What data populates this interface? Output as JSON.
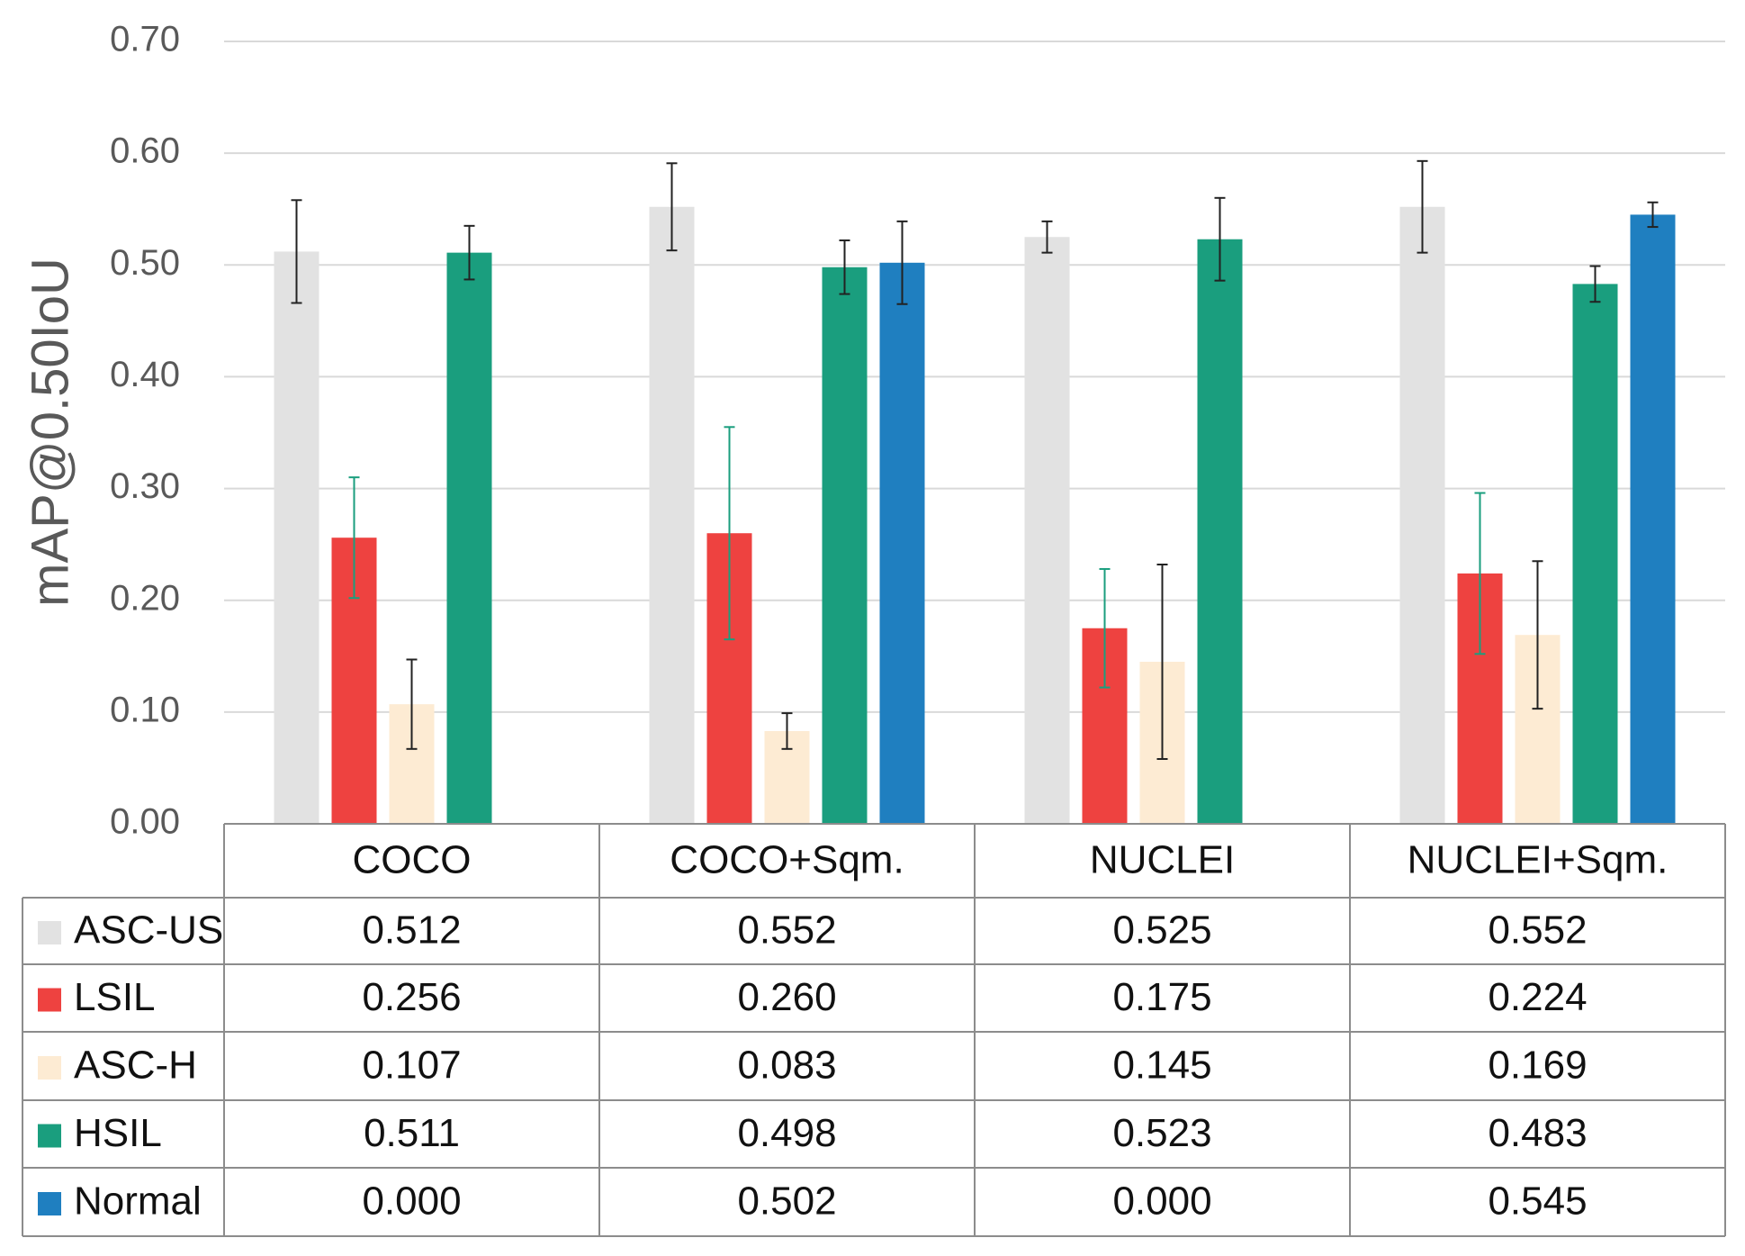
{
  "chart_data": {
    "type": "bar",
    "y_label": "mAP@0.50IoU",
    "categories": [
      "COCO",
      "COCO+Sqm.",
      "NUCLEI",
      "NUCLEI+Sqm."
    ],
    "ylim": [
      0,
      0.7
    ],
    "yticks": [
      {
        "value": 0,
        "label": "0.00"
      },
      {
        "value": 0.1,
        "label": "0.10"
      },
      {
        "value": 0.2,
        "label": "0.20"
      },
      {
        "value": 0.3,
        "label": "0.30"
      },
      {
        "value": 0.4,
        "label": "0.40"
      },
      {
        "value": 0.5,
        "label": "0.50"
      },
      {
        "value": 0.6,
        "label": "0.60"
      },
      {
        "value": 0.7,
        "label": "0.70"
      }
    ],
    "grid": true,
    "series": [
      {
        "name": "ASC-US",
        "color": "#e2e2e2",
        "error_color": "#222222",
        "values": [
          0.512,
          0.552,
          0.525,
          0.552
        ],
        "value_labels": [
          "0.512",
          "0.552",
          "0.525",
          "0.552"
        ],
        "errors": [
          0.046,
          0.039,
          0.014,
          0.041
        ]
      },
      {
        "name": "LSIL",
        "color": "#ee4240",
        "error_color": "#1a9e7e",
        "values": [
          0.256,
          0.26,
          0.175,
          0.224
        ],
        "value_labels": [
          "0.256",
          "0.260",
          "0.175",
          "0.224"
        ],
        "errors": [
          0.054,
          0.095,
          0.053,
          0.072
        ]
      },
      {
        "name": "ASC-H",
        "color": "#fdebd3",
        "error_color": "#222222",
        "values": [
          0.107,
          0.083,
          0.145,
          0.169
        ],
        "value_labels": [
          "0.107",
          "0.083",
          "0.145",
          "0.169"
        ],
        "errors": [
          0.04,
          0.016,
          0.087,
          0.066
        ]
      },
      {
        "name": "HSIL",
        "color": "#1a9e7e",
        "error_color": "#222222",
        "values": [
          0.511,
          0.498,
          0.523,
          0.483
        ],
        "value_labels": [
          "0.511",
          "0.498",
          "0.523",
          "0.483"
        ],
        "errors": [
          0.024,
          0.024,
          0.037,
          0.016
        ]
      },
      {
        "name": "Normal",
        "color": "#1f7fc0",
        "error_color": "#222222",
        "values": [
          0,
          0.502,
          0,
          0.545
        ],
        "value_labels": [
          "0.000",
          "0.502",
          "0.000",
          "0.545"
        ],
        "errors": [
          null,
          0.037,
          null,
          0.011
        ]
      }
    ]
  }
}
